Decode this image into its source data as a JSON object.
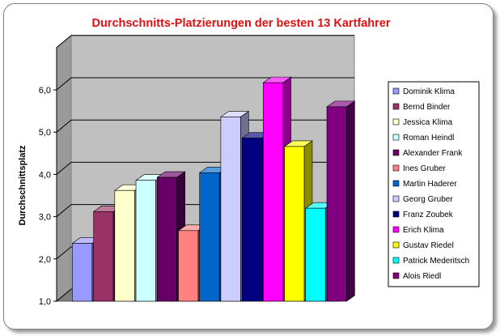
{
  "chart_data": {
    "type": "bar",
    "title": "Durchschnitts-Platzierungen der besten 13 Kartfahrer",
    "ylabel": "Durchschnittsplatz",
    "xlabel": "",
    "ylim": [
      1.0,
      6.0
    ],
    "yticks": [
      "1,0",
      "2,0",
      "3,0",
      "4,0",
      "5,0",
      "6,0"
    ],
    "grid": true,
    "legend_position": "right",
    "series": [
      {
        "name": "Dominik Klima",
        "value": 2.37,
        "color": "#9999ff"
      },
      {
        "name": "Bernd Binder",
        "value": 3.12,
        "color": "#993366"
      },
      {
        "name": "Jessica Klima",
        "value": 3.62,
        "color": "#ffffcc"
      },
      {
        "name": "Roman Heindl",
        "value": 3.86,
        "color": "#ccffff"
      },
      {
        "name": "Alexander Frank",
        "value": 3.93,
        "color": "#660066"
      },
      {
        "name": "Ines Gruber",
        "value": 2.67,
        "color": "#ff8080"
      },
      {
        "name": "Martin Haderer",
        "value": 4.04,
        "color": "#0066cc"
      },
      {
        "name": "Georg Gruber",
        "value": 5.36,
        "color": "#ccccff"
      },
      {
        "name": "Franz Zoubek",
        "value": 4.86,
        "color": "#000080"
      },
      {
        "name": "Erich Klima",
        "value": 6.17,
        "color": "#ff00ff"
      },
      {
        "name": "Gustav Riedel",
        "value": 4.66,
        "color": "#ffff00"
      },
      {
        "name": "Patrick Mederitsch",
        "value": 3.2,
        "color": "#00ffff"
      },
      {
        "name": "Alois Riedl",
        "value": 5.6,
        "color": "#800080"
      }
    ]
  }
}
